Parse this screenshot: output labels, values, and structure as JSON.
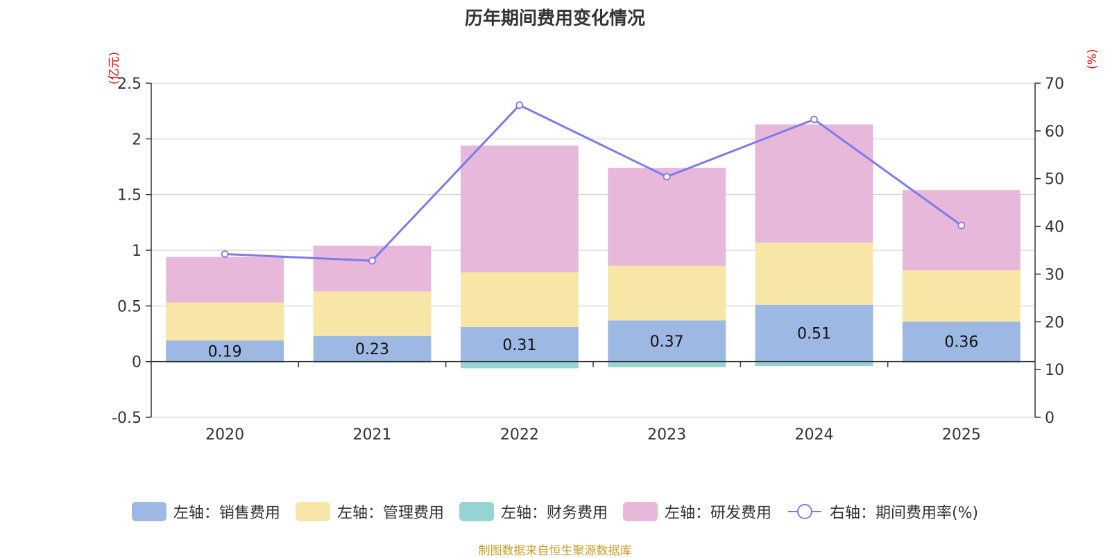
{
  "chart_data": {
    "type": "bar",
    "title": "历年期间费用变化情况",
    "categories": [
      "2020",
      "2021",
      "2022",
      "2023",
      "2024",
      "2025"
    ],
    "left_axis": {
      "unit": "(亿元)",
      "min": -0.5,
      "max": 2.5,
      "ticks": [
        -0.5,
        0,
        0.5,
        1,
        1.5,
        2,
        2.5
      ],
      "tick_labels": [
        "-0.5",
        "0",
        "0.5",
        "1",
        "1.5",
        "2",
        "2.5"
      ]
    },
    "right_axis": {
      "unit": "(%)",
      "min": 0,
      "max": 70,
      "ticks": [
        0,
        10,
        20,
        30,
        40,
        50,
        60,
        70
      ],
      "tick_labels": [
        "0",
        "10",
        "20",
        "30",
        "40",
        "50",
        "60",
        "70"
      ]
    },
    "series": [
      {
        "name": "左轴：销售费用",
        "type": "bar",
        "color": "#9db8e2",
        "values": [
          0.19,
          0.23,
          0.31,
          0.37,
          0.51,
          0.36
        ],
        "labels": [
          "0.19",
          "0.23",
          "0.31",
          "0.37",
          "0.51",
          "0.36"
        ]
      },
      {
        "name": "左轴：管理费用",
        "type": "bar",
        "color": "#f8e6a7",
        "values": [
          0.34,
          0.4,
          0.49,
          0.49,
          0.56,
          0.46
        ]
      },
      {
        "name": "左轴：财务费用",
        "type": "bar",
        "color": "#96d4d4",
        "values": [
          -0.01,
          -0.01,
          -0.06,
          -0.05,
          -0.04,
          -0.01
        ]
      },
      {
        "name": "左轴：研发费用",
        "type": "bar",
        "color": "#e7b8d9",
        "values": [
          0.41,
          0.41,
          1.14,
          0.88,
          1.06,
          0.72
        ]
      },
      {
        "name": "右轴：期间费用率(%)",
        "type": "line",
        "color": "#7b7bef",
        "values": [
          34.2,
          32.8,
          65.4,
          50.4,
          62.4,
          40.2
        ]
      }
    ],
    "grid": true,
    "legend_position": "bottom"
  },
  "source": "制图数据来自恒生聚源数据库"
}
